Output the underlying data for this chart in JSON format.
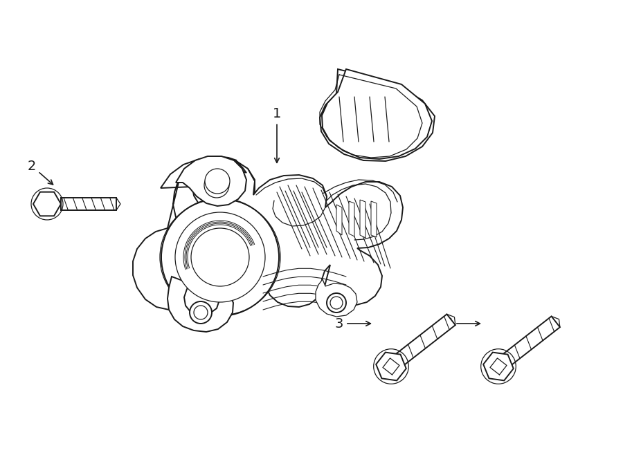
{
  "bg_color": "#ffffff",
  "line_color": "#1a1a1a",
  "lw": 1.4,
  "lw_thin": 0.9,
  "lw_thick": 1.8,
  "fig_width": 9.0,
  "fig_height": 6.61,
  "dpi": 100
}
